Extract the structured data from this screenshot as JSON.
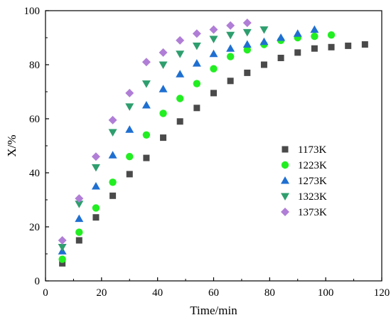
{
  "chart_data": {
    "type": "scatter",
    "title": "",
    "xlabel": "Time/min",
    "ylabel": "X/%",
    "xlim": [
      0,
      120
    ],
    "ylim": [
      0,
      100
    ],
    "xticks": [
      0,
      20,
      40,
      60,
      80,
      100,
      120
    ],
    "yticks": [
      0,
      20,
      40,
      60,
      80,
      100
    ],
    "grid": false,
    "legend_position": "center-right",
    "series": [
      {
        "name": "1173K",
        "marker": "square",
        "color": "#4a4a4a",
        "x": [
          6,
          12,
          18,
          24,
          30,
          36,
          42,
          48,
          54,
          60,
          66,
          72,
          78,
          84,
          90,
          96,
          102,
          108,
          114
        ],
        "y": [
          6.5,
          15,
          23.5,
          31.5,
          39.5,
          45.5,
          53,
          59,
          64,
          69.5,
          74,
          77,
          80,
          82.5,
          84.5,
          86,
          86.5,
          87,
          87.5
        ]
      },
      {
        "name": "1223K",
        "marker": "circle",
        "color": "#22ee22",
        "x": [
          6,
          12,
          18,
          24,
          30,
          36,
          42,
          48,
          54,
          60,
          66,
          72,
          78,
          84,
          90,
          96,
          102
        ],
        "y": [
          8,
          18,
          27,
          36.5,
          46,
          54,
          62,
          67.5,
          73,
          78.5,
          83,
          85.5,
          87.5,
          89,
          90,
          90.5,
          91
        ]
      },
      {
        "name": "1273K",
        "marker": "triangle-up",
        "color": "#1f6fd1",
        "x": [
          6,
          12,
          18,
          24,
          30,
          36,
          42,
          48,
          54,
          60,
          66,
          72,
          78,
          84,
          90,
          96
        ],
        "y": [
          11,
          23,
          35,
          46.5,
          56,
          65,
          71,
          76.5,
          80.5,
          84,
          86,
          87.5,
          88.5,
          90,
          91.5,
          93
        ]
      },
      {
        "name": "1323K",
        "marker": "triangle-down",
        "color": "#2e9e6e",
        "x": [
          6,
          12,
          18,
          24,
          30,
          36,
          42,
          48,
          54,
          60,
          66,
          72,
          78
        ],
        "y": [
          12.5,
          28.5,
          42,
          55,
          64.5,
          73,
          80,
          84,
          87,
          89.5,
          91,
          92,
          93
        ]
      },
      {
        "name": "1373K",
        "marker": "diamond",
        "color": "#b07ed6",
        "x": [
          6,
          12,
          18,
          24,
          30,
          36,
          42,
          48,
          54,
          60,
          66,
          72
        ],
        "y": [
          15,
          30.5,
          46,
          59.5,
          69.5,
          81,
          84.5,
          89,
          91.5,
          93,
          94.5,
          95.5
        ]
      }
    ]
  }
}
